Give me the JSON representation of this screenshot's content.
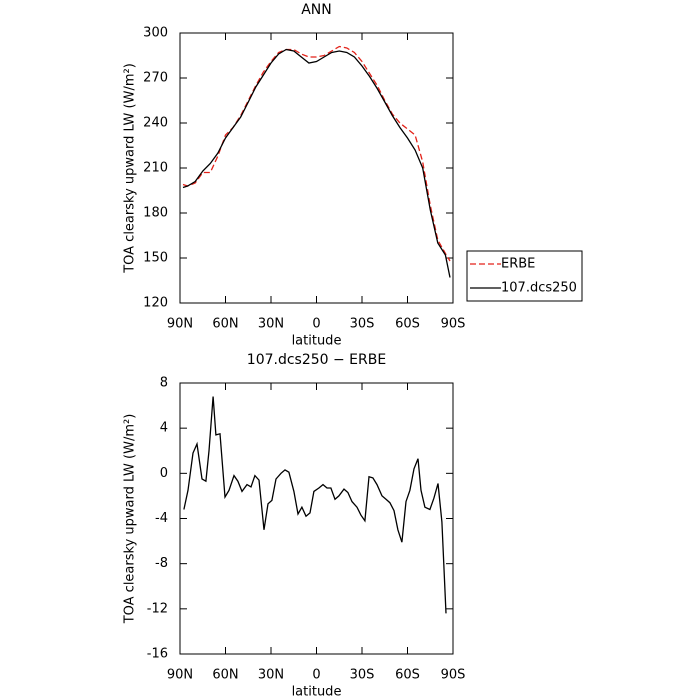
{
  "chart_data": [
    {
      "type": "line",
      "title": "ANN",
      "xlabel": "latitude",
      "ylabel": "TOA clearsky upward LW (W/m²)",
      "x": [
        88,
        85,
        80,
        75,
        70,
        65,
        60,
        55,
        50,
        45,
        40,
        35,
        30,
        25,
        20,
        15,
        10,
        5,
        0,
        -5,
        -10,
        -15,
        -20,
        -25,
        -30,
        -35,
        -40,
        -45,
        -50,
        -55,
        -60,
        -65,
        -70,
        -75,
        -80,
        -85,
        -88
      ],
      "series": [
        {
          "name": "ERBE",
          "color": "#e32219",
          "dash": true,
          "values": [
            199,
            198,
            200,
            207,
            207,
            218,
            232,
            237,
            245,
            255,
            265,
            274,
            281,
            287,
            289,
            289,
            286,
            284,
            284,
            285,
            288,
            291,
            290,
            287,
            281,
            273,
            265,
            255,
            246,
            240,
            236,
            232,
            214,
            185,
            162,
            153,
            148
          ]
        },
        {
          "name": "107.dcs250",
          "color": "#000000",
          "dash": false,
          "values": [
            197,
            198,
            201,
            208,
            213,
            220,
            230,
            237,
            244,
            254,
            264,
            272,
            280,
            286,
            289,
            288,
            284,
            280,
            281,
            284,
            287,
            288,
            287,
            284,
            278,
            271,
            263,
            254,
            245,
            237,
            230,
            222,
            210,
            182,
            160,
            152,
            137
          ]
        }
      ],
      "xlim": [
        90,
        -90
      ],
      "xticks": [
        {
          "value": 90,
          "label": "90N"
        },
        {
          "value": 60,
          "label": "60N"
        },
        {
          "value": 30,
          "label": "30N"
        },
        0,
        {
          "value": -30,
          "label": "30S"
        },
        {
          "value": -60,
          "label": "60S"
        },
        {
          "value": -90,
          "label": "90S"
        }
      ],
      "ylim": [
        120,
        300
      ],
      "yticks": [
        120,
        150,
        180,
        210,
        240,
        270,
        300
      ],
      "legend": "outside-right"
    },
    {
      "type": "line",
      "title": "107.dcs250 − ERBE",
      "xlabel": "latitude",
      "ylabel": "TOA clearsky upward LW (W/m²)",
      "x": [
        87.4,
        84.7,
        81.4,
        78.8,
        75.5,
        72.9,
        70.9,
        68.2,
        66.3,
        63.6,
        60.3,
        57.7,
        54.4,
        51.8,
        49.1,
        45.8,
        43.2,
        40.6,
        37.9,
        34.6,
        32,
        29.4,
        26.7,
        23.4,
        20.8,
        18.2,
        14.9,
        12.2,
        9.6,
        6.9,
        4.3,
        1.7,
        -1.6,
        -4.3,
        -6.9,
        -9.5,
        -12.2,
        -14.8,
        -18.1,
        -20.7,
        -23.4,
        -26.7,
        -29.3,
        -31.9,
        -34.6,
        -37.2,
        -39.9,
        -43.2,
        -45.8,
        -48.4,
        -51.1,
        -53.7,
        -56.3,
        -59,
        -61.6,
        -64.3,
        -66.9,
        -68.9,
        -71.5,
        -74.8,
        -77.4,
        -80.1,
        -82.7,
        -85.4
      ],
      "series": [
        {
          "color": "#000000",
          "dash": false,
          "values": [
            -3.2,
            -1.5,
            1.8,
            2.6,
            -0.5,
            -0.7,
            2.0,
            6.8,
            3.4,
            3.5,
            -2.1,
            -1.5,
            -0.2,
            -0.7,
            -1.6,
            -1.0,
            -1.2,
            -0.2,
            -0.6,
            -5.0,
            -2.7,
            -2.4,
            -0.5,
            0.0,
            0.3,
            0.1,
            -1.6,
            -3.6,
            -3.0,
            -3.8,
            -3.5,
            -1.6,
            -1.3,
            -1.0,
            -1.3,
            -1.3,
            -2.3,
            -2.0,
            -1.4,
            -1.7,
            -2.5,
            -3.0,
            -3.7,
            -4.2,
            -0.3,
            -0.4,
            -1.0,
            -2.0,
            -2.3,
            -2.6,
            -3.3,
            -5.0,
            -6.1,
            -2.5,
            -1.5,
            0.4,
            1.3,
            -1.5,
            -3.0,
            -3.2,
            -2.2,
            -0.9,
            -4.3,
            -12.4
          ]
        }
      ],
      "xlim": [
        90,
        -90
      ],
      "xticks": [
        {
          "value": 90,
          "label": "90N"
        },
        {
          "value": 60,
          "label": "60N"
        },
        {
          "value": 30,
          "label": "30N"
        },
        0,
        {
          "value": -30,
          "label": "30S"
        },
        {
          "value": -60,
          "label": "60S"
        },
        {
          "value": -90,
          "label": "90S"
        }
      ],
      "ylim": [
        -16,
        8
      ],
      "yticks": [
        -16,
        -12,
        -8,
        -4,
        0,
        4,
        8
      ]
    }
  ]
}
